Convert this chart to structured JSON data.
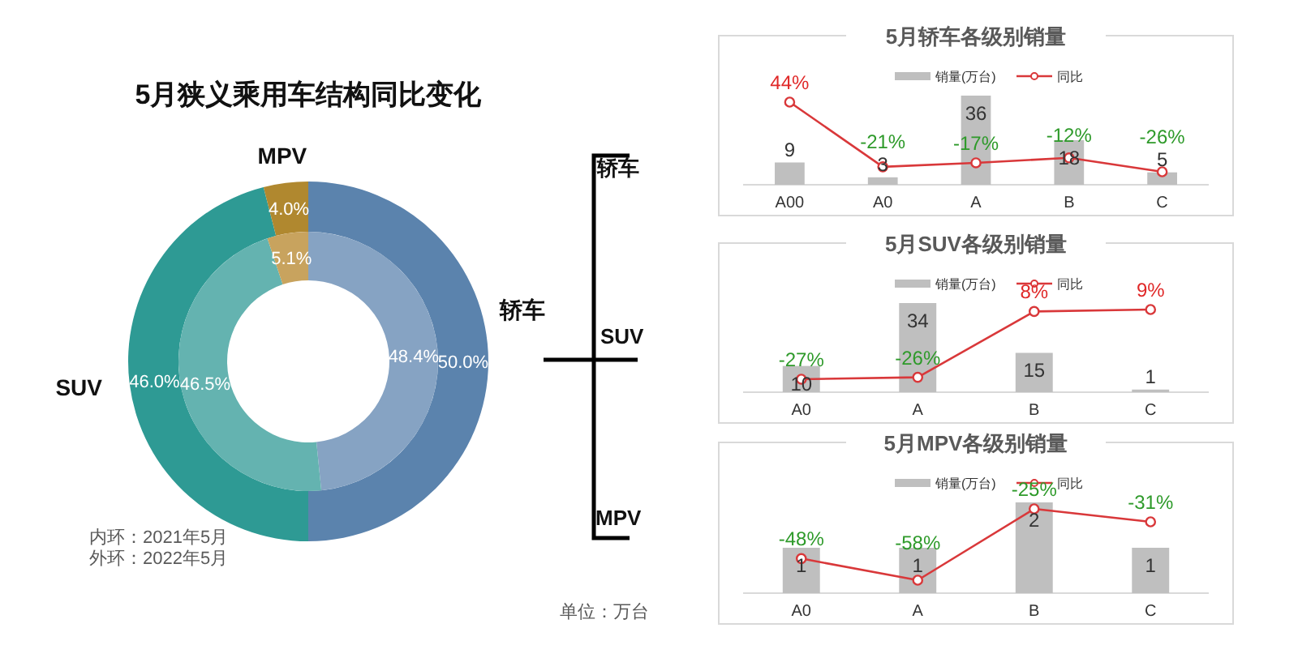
{
  "chart_data": [
    {
      "type": "donut",
      "title": "5月狭义乘用车结构同比变化",
      "categories": [
        "轿车",
        "SUV",
        "MPV"
      ],
      "series": [
        {
          "values": [
            50.0,
            46.0,
            4.0
          ],
          "colors": [
            "#5b83ad",
            "#2e9a94",
            "#b0882f"
          ],
          "value_labels": [
            "50.0%",
            "46.0%",
            "4.0%"
          ]
        },
        {
          "values": [
            48.4,
            46.5,
            5.1
          ],
          "colors": [
            "#86a3c3",
            "#64b3b0",
            "#c8a35e"
          ],
          "value_labels": [
            "48.4%",
            "46.5%",
            "5.1%"
          ]
        }
      ],
      "annotations": [
        "内环：2021年5月",
        "外环：2022年5月",
        "单位：万台",
        "轿车",
        "SUV",
        "MPV"
      ]
    },
    {
      "type": "bar",
      "title": "5月轿车各级别销量",
      "categories": [
        "A00",
        "A0",
        "A",
        "B",
        "C"
      ],
      "legend": "top",
      "data_labels": true,
      "series": [
        {
          "name": "销量(万台)",
          "color": "#bfbfbf",
          "values": [
            9,
            3,
            36,
            18,
            5
          ]
        },
        {
          "name": "同比",
          "type": "line",
          "axis": "y2",
          "color": "#d9383a",
          "marker": "circle",
          "values": [
            44,
            -21,
            -17,
            -12,
            -26
          ],
          "value_labels": [
            "44%",
            "-21%",
            "-17%",
            "-12%",
            "-26%"
          ]
        }
      ]
    },
    {
      "type": "bar",
      "title": "5月SUV各级别销量",
      "categories": [
        "A0",
        "A",
        "B",
        "C"
      ],
      "legend": "top",
      "data_labels": true,
      "series": [
        {
          "name": "销量(万台)",
          "color": "#bfbfbf",
          "values": [
            10,
            34,
            15,
            1
          ]
        },
        {
          "name": "同比",
          "type": "line",
          "axis": "y2",
          "color": "#d9383a",
          "marker": "circle",
          "values": [
            -27,
            -26,
            8,
            9
          ],
          "value_labels": [
            "-27%",
            "-26%",
            "8%",
            "9%"
          ]
        }
      ]
    },
    {
      "type": "bar",
      "title": "5月MPV各级别销量",
      "categories": [
        "A0",
        "A",
        "B",
        "C"
      ],
      "legend": "top",
      "data_labels": true,
      "series": [
        {
          "name": "销量(万台)",
          "color": "#bfbfbf",
          "values": [
            1,
            1,
            2,
            1
          ]
        },
        {
          "name": "同比",
          "type": "line",
          "axis": "y2",
          "color": "#d9383a",
          "marker": "circle",
          "values": [
            -48,
            -58,
            -25,
            -31
          ],
          "value_labels": [
            "-48%",
            "-58%",
            "-25%",
            "-31%"
          ]
        }
      ]
    }
  ]
}
